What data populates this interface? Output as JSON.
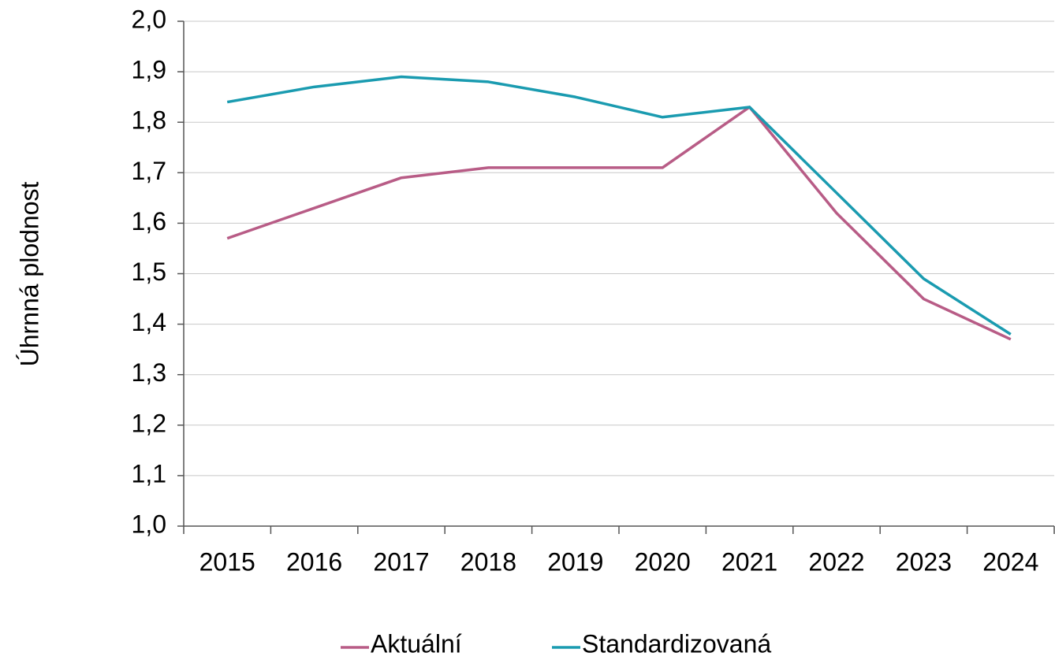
{
  "chart_data": {
    "type": "line",
    "y_label": "Úhrnná plodnost",
    "categories": [
      "2015",
      "2016",
      "2017",
      "2018",
      "2019",
      "2020",
      "2021",
      "2022",
      "2023",
      "2024"
    ],
    "series": [
      {
        "name": "Aktuální",
        "color": "#b85c86",
        "values": [
          1.57,
          1.63,
          1.69,
          1.71,
          1.71,
          1.71,
          1.83,
          1.62,
          1.45,
          1.37
        ]
      },
      {
        "name": "Standardizovaná",
        "color": "#1a9bb0",
        "values": [
          1.84,
          1.87,
          1.89,
          1.88,
          1.85,
          1.81,
          1.83,
          1.66,
          1.49,
          1.38
        ]
      }
    ],
    "ylim": [
      1.0,
      2.0
    ],
    "yticks": [
      {
        "value": 1.0,
        "label": "1,0"
      },
      {
        "value": 1.1,
        "label": "1,1"
      },
      {
        "value": 1.2,
        "label": "1,2"
      },
      {
        "value": 1.3,
        "label": "1,3"
      },
      {
        "value": 1.4,
        "label": "1,4"
      },
      {
        "value": 1.5,
        "label": "1,5"
      },
      {
        "value": 1.6,
        "label": "1,6"
      },
      {
        "value": 1.7,
        "label": "1,7"
      },
      {
        "value": 1.8,
        "label": "1,8"
      },
      {
        "value": 1.9,
        "label": "1,9"
      },
      {
        "value": 2.0,
        "label": "2,0"
      }
    ],
    "grid": true,
    "legend": "bottom"
  }
}
